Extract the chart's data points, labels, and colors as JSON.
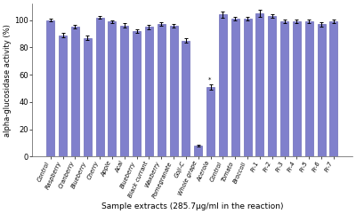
{
  "categories": [
    "Control",
    "Raspberry",
    "Cranberry",
    "Blueberry",
    "Cherry",
    "Apple",
    "Acai",
    "Blueberry",
    "Black currant",
    "Waxberry",
    "Pomegranate",
    "Goji-C",
    "Whole grape",
    "Acerola",
    "Control",
    "Tomato",
    "Broccoli",
    "Fr-1",
    "Fr-2",
    "Fr-3",
    "Fr-4",
    "Fr-5",
    "Fr-6",
    "Fr-7"
  ],
  "values": [
    100,
    89,
    95,
    87,
    102,
    99,
    96,
    92,
    95,
    97,
    96,
    85,
    8,
    51,
    104,
    101,
    101,
    105,
    103,
    99,
    99,
    99,
    97,
    99
  ],
  "errors": [
    0.8,
    1.5,
    1.2,
    1.5,
    1.0,
    1.0,
    1.5,
    1.5,
    1.5,
    1.2,
    1.2,
    1.5,
    0.8,
    2.0,
    2.0,
    1.5,
    1.5,
    2.5,
    1.5,
    1.5,
    1.5,
    1.5,
    1.5,
    1.5
  ],
  "bar_color": "#8080cc",
  "bar_edgecolor": "#5555aa",
  "ylabel": "alpha-glucosidase activity (%)",
  "xlabel": "Sample extracts (285.7μg/ml in the reaction)",
  "ylim": [
    0,
    112
  ],
  "yticks": [
    0,
    20,
    40,
    60,
    80,
    100
  ],
  "background_color": "#ffffff",
  "figure_facecolor": "#ffffff",
  "acerola_asterisk": true,
  "broccoli_asterisk": true
}
